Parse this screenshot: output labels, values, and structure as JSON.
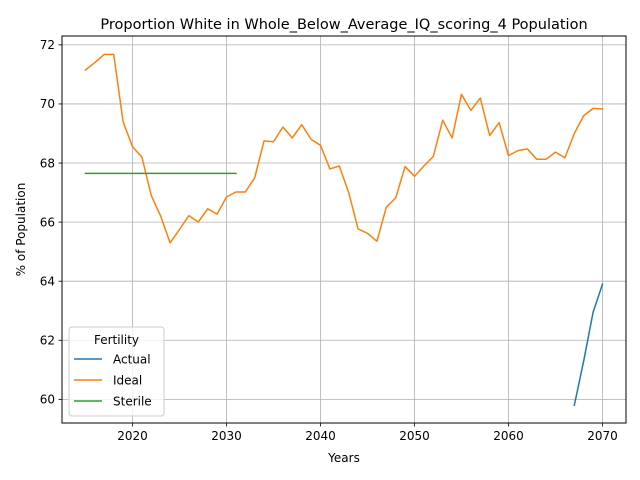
{
  "chart_data": {
    "type": "line",
    "title": "Proportion White in Whole_Below_Average_IQ_scoring_4 Population",
    "xlabel": "Years",
    "ylabel": "% of Population",
    "xlim": [
      2012.5,
      2072.5
    ],
    "ylim": [
      59.2,
      72.3
    ],
    "xticks": [
      2020,
      2030,
      2040,
      2050,
      2060,
      2070
    ],
    "yticks": [
      60,
      62,
      64,
      66,
      68,
      70,
      72
    ],
    "grid": true,
    "legend": {
      "title": "Fertility",
      "placement": "lower-left"
    },
    "series": [
      {
        "name": "Actual",
        "color": "#1f77b4",
        "x": [
          2067,
          2068,
          2069,
          2070
        ],
        "y": [
          59.8,
          61.3,
          62.95,
          63.9
        ]
      },
      {
        "name": "Ideal",
        "color": "#ff7f0e",
        "x": [
          2015,
          2016,
          2017,
          2018,
          2019,
          2020,
          2021,
          2022,
          2023,
          2024,
          2025,
          2026,
          2027,
          2028,
          2029,
          2030,
          2031,
          2032,
          2033,
          2034,
          2035,
          2036,
          2037,
          2038,
          2039,
          2040,
          2041,
          2042,
          2043,
          2044,
          2045,
          2046,
          2047,
          2048,
          2049,
          2050,
          2051,
          2052,
          2053,
          2054,
          2055,
          2056,
          2057,
          2058,
          2059,
          2060,
          2061,
          2062,
          2063,
          2064,
          2065,
          2066,
          2067,
          2068,
          2069,
          2070
        ],
        "y": [
          71.15,
          71.4,
          71.68,
          71.68,
          69.4,
          68.55,
          68.2,
          66.9,
          66.2,
          65.3,
          65.75,
          66.22,
          66.0,
          66.45,
          66.27,
          66.85,
          67.02,
          67.02,
          67.5,
          68.75,
          68.72,
          69.22,
          68.85,
          69.3,
          68.8,
          68.6,
          67.8,
          67.9,
          67.0,
          65.77,
          65.62,
          65.35,
          66.5,
          66.82,
          67.88,
          67.55,
          67.9,
          68.22,
          69.45,
          68.85,
          70.33,
          69.78,
          70.2,
          68.93,
          69.37,
          68.25,
          68.42,
          68.48,
          68.13,
          68.13,
          68.37,
          68.18,
          69.0,
          69.6,
          69.85,
          69.83
        ]
      },
      {
        "name": "Sterile",
        "color": "#2ca02c",
        "x": [
          2015,
          2016,
          2017,
          2018,
          2019,
          2020,
          2021,
          2022,
          2023,
          2024,
          2025,
          2026,
          2027,
          2028,
          2029,
          2030,
          2031
        ],
        "y": [
          67.65,
          67.65,
          67.65,
          67.65,
          67.65,
          67.65,
          67.65,
          67.65,
          67.65,
          67.65,
          67.65,
          67.65,
          67.65,
          67.65,
          67.65,
          67.65,
          67.65
        ]
      }
    ]
  }
}
